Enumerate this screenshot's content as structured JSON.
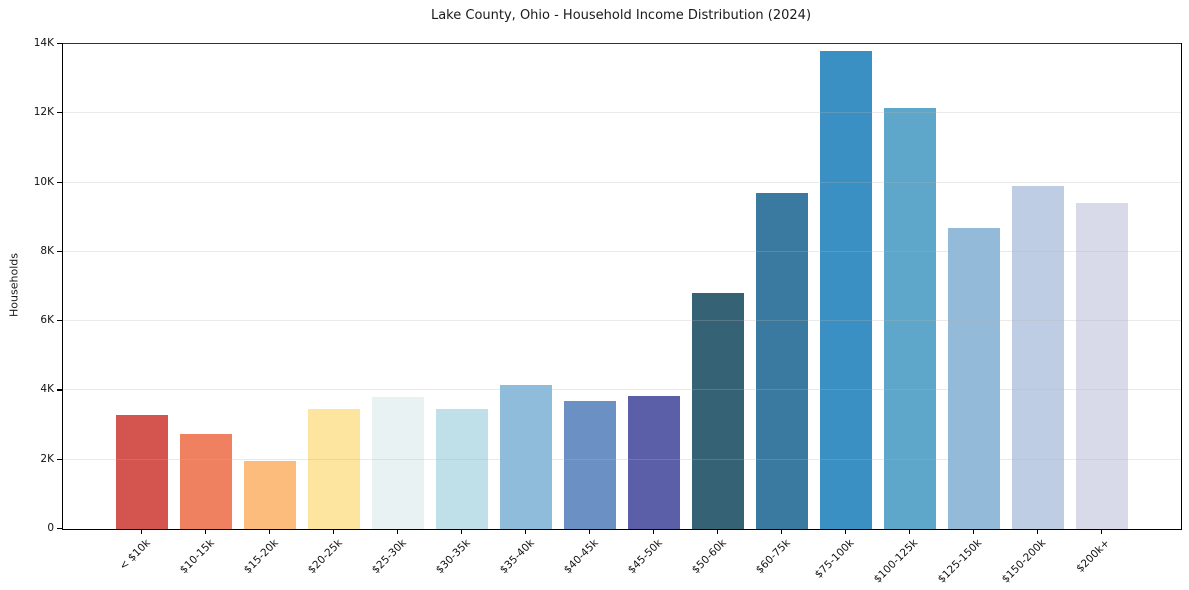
{
  "title": "Lake County, Ohio - Household Income Distribution (2024)",
  "chart_data": {
    "type": "bar",
    "title": "Lake County, Ohio - Household Income Distribution (2024)",
    "xlabel": "",
    "ylabel": "Households",
    "ylim": [
      0,
      14000
    ],
    "grid": "horizontal-light",
    "legend": "none",
    "background": "#ffffff",
    "ytick_labels": [
      "0",
      "2K",
      "4K",
      "6K",
      "8K",
      "10K",
      "12K",
      "14K"
    ],
    "ytick_values": [
      0,
      2000,
      4000,
      6000,
      8000,
      10000,
      12000,
      14000
    ],
    "categories": [
      "< $10k",
      "$10-15k",
      "$15-20k",
      "$20-25k",
      "$25-30k",
      "$30-35k",
      "$35-40k",
      "$40-45k",
      "$45-50k",
      "$50-60k",
      "$60-75k",
      "$75-100k",
      "$100-125k",
      "$125-150k",
      "$150-200k",
      "$200k+"
    ],
    "values": [
      3300,
      2750,
      1950,
      3450,
      3800,
      3450,
      4150,
      3700,
      3850,
      6800,
      9700,
      13800,
      12150,
      8700,
      9900,
      9400
    ],
    "bar_colors": [
      "#d4544f",
      "#f08160",
      "#fcbc7b",
      "#fde5a0",
      "#e8f2f3",
      "#bfdfe9",
      "#90bcdb",
      "#6a90c4",
      "#5a5fa8",
      "#366276",
      "#3a7aa0",
      "#3a90c3",
      "#5ea7ca",
      "#93bad9",
      "#bfcde4",
      "#d9dae9"
    ],
    "axis_color": "#000000",
    "gridline_color": "#ececec",
    "text_color": "#1a1a1a"
  }
}
